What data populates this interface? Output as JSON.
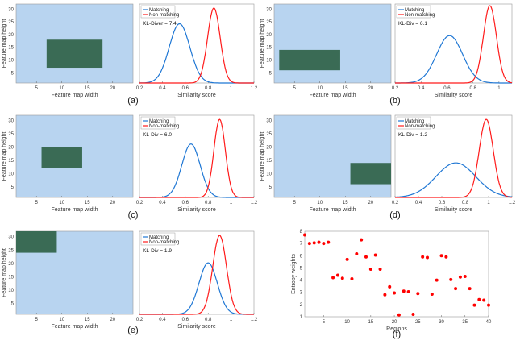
{
  "chart_data": [
    {
      "panel": "(a)",
      "type": "heatmap",
      "xlabel": "Feature map width",
      "ylabel": "Feature map height",
      "xlim": [
        1,
        24
      ],
      "ylim": [
        1,
        32
      ],
      "xticks": [
        5,
        10,
        15,
        20
      ],
      "yticks": [
        5,
        10,
        15,
        20,
        25,
        30
      ],
      "region": {
        "x": [
          7,
          18
        ],
        "y": [
          7,
          18
        ]
      },
      "background": "#b8d4f0",
      "region_color": "#3a6b55"
    },
    {
      "panel": "(a)",
      "type": "line",
      "xlabel": "Similarity score",
      "xlim": [
        0.2,
        1.2
      ],
      "xticks": [
        "0.2",
        "0.4",
        "0.6",
        "0.8",
        "1",
        "1.2"
      ],
      "legend": [
        "Matching",
        "Non-matching"
      ],
      "legend_position": "top-left",
      "annotation": "KL-Diver = 7.4",
      "series": [
        {
          "name": "Matching",
          "color": "#1f77d4",
          "mean": 0.55,
          "sd": 0.09,
          "peak": 0.75
        },
        {
          "name": "Non-matching",
          "color": "#ff1a1a",
          "mean": 0.85,
          "sd": 0.055,
          "peak": 0.95
        }
      ]
    },
    {
      "panel": "(b)",
      "type": "heatmap",
      "xlabel": "Feature map width",
      "ylabel": "Feature map height",
      "xlim": [
        1,
        24
      ],
      "ylim": [
        1,
        32
      ],
      "xticks": [
        5,
        10,
        15,
        20
      ],
      "yticks": [
        5,
        10,
        15,
        20,
        25,
        30
      ],
      "region": {
        "x": [
          2,
          14
        ],
        "y": [
          6,
          14
        ]
      },
      "background": "#b8d4f0",
      "region_color": "#3a6b55"
    },
    {
      "panel": "(b)",
      "type": "line",
      "xlabel": "Similarity score",
      "xlim": [
        0.2,
        1.1
      ],
      "xticks": [
        "0.2",
        "0.4",
        "0.6",
        "0.8",
        "1"
      ],
      "legend": [
        "Matching",
        "Non-matching"
      ],
      "legend_position": "top-left",
      "annotation": "KL-Div = 6.1",
      "series": [
        {
          "name": "Matching",
          "color": "#1f77d4",
          "mean": 0.62,
          "sd": 0.1,
          "peak": 0.6
        },
        {
          "name": "Non-matching",
          "color": "#ff1a1a",
          "mean": 0.93,
          "sd": 0.05,
          "peak": 0.98
        }
      ]
    },
    {
      "panel": "(c)",
      "type": "heatmap",
      "xlabel": "Feature map width",
      "ylabel": "Feature map height",
      "xlim": [
        1,
        24
      ],
      "ylim": [
        1,
        32
      ],
      "xticks": [
        5,
        10,
        15,
        20
      ],
      "yticks": [
        5,
        10,
        15,
        20,
        25,
        30
      ],
      "region": {
        "x": [
          6,
          14
        ],
        "y": [
          12,
          20
        ]
      },
      "background": "#b8d4f0",
      "region_color": "#3a6b55"
    },
    {
      "panel": "(c)",
      "type": "line",
      "xlabel": "Similarity score",
      "xlim": [
        0.2,
        1.2
      ],
      "xticks": [
        "0.2",
        "0.4",
        "0.6",
        "0.8",
        "1",
        "1.2"
      ],
      "legend": [
        "Matching",
        "Non-matching"
      ],
      "legend_position": "top-left",
      "annotation": "KL-Div = 6.0",
      "series": [
        {
          "name": "Matching",
          "color": "#1f77d4",
          "mean": 0.65,
          "sd": 0.08,
          "peak": 0.65
        },
        {
          "name": "Non-matching",
          "color": "#ff1a1a",
          "mean": 0.9,
          "sd": 0.05,
          "peak": 0.95
        }
      ]
    },
    {
      "panel": "(d)",
      "type": "heatmap",
      "xlabel": "Feature map width",
      "ylabel": "Feature map height",
      "xlim": [
        1,
        24
      ],
      "ylim": [
        1,
        32
      ],
      "xticks": [
        5,
        10,
        15,
        20
      ],
      "yticks": [
        5,
        10,
        15,
        20,
        25,
        30
      ],
      "region": {
        "x": [
          16,
          24
        ],
        "y": [
          6,
          14
        ]
      },
      "background": "#b8d4f0",
      "region_color": "#3a6b55"
    },
    {
      "panel": "(d)",
      "type": "line",
      "xlabel": "Similarity score",
      "xlim": [
        0.2,
        1.2
      ],
      "xticks": [
        "0.2",
        "0.4",
        "0.6",
        "0.8",
        "1",
        "1.2"
      ],
      "legend": [
        "Matching",
        "Non-matching"
      ],
      "legend_position": "top-left",
      "annotation": "KL-Div = 1.2",
      "series": [
        {
          "name": "Matching",
          "color": "#1f77d4",
          "mean": 0.72,
          "sd": 0.17,
          "peak": 0.42
        },
        {
          "name": "Non-matching",
          "color": "#ff1a1a",
          "mean": 0.98,
          "sd": 0.06,
          "peak": 0.95
        }
      ]
    },
    {
      "panel": "(e)",
      "type": "heatmap",
      "xlabel": "Feature map width",
      "ylabel": "Feature map height",
      "xlim": [
        1,
        24
      ],
      "ylim": [
        1,
        32
      ],
      "xticks": [
        5,
        10,
        15,
        20
      ],
      "yticks": [
        5,
        10,
        15,
        20,
        25,
        30
      ],
      "region": {
        "x": [
          1,
          9
        ],
        "y": [
          24,
          32
        ]
      },
      "background": "#b8d4f0",
      "region_color": "#3a6b55"
    },
    {
      "panel": "(e)",
      "type": "line",
      "xlabel": "Similarity score",
      "xlim": [
        0.2,
        1.2
      ],
      "xticks": [
        "0.2",
        "0.4",
        "0.6",
        "0.8",
        "1",
        "1.2"
      ],
      "legend": [
        "Matching",
        "Non-matching"
      ],
      "legend_position": "top-left",
      "annotation": "KL-Div = 1.9",
      "series": [
        {
          "name": "Matching",
          "color": "#1f77d4",
          "mean": 0.8,
          "sd": 0.08,
          "peak": 0.62
        },
        {
          "name": "Non-matching",
          "color": "#ff1a1a",
          "mean": 0.9,
          "sd": 0.06,
          "peak": 0.95
        }
      ]
    },
    {
      "panel": "(f)",
      "type": "scatter",
      "xlabel": "Regions",
      "ylabel": "Entropy weights",
      "xlim": [
        1,
        40
      ],
      "ylim": [
        1,
        8
      ],
      "xticks": [
        5,
        10,
        15,
        20,
        25,
        30,
        35,
        40
      ],
      "yticks": [
        1,
        2,
        3,
        4,
        5,
        6,
        7,
        8
      ],
      "color": "#ff0000",
      "x": [
        1,
        2,
        3,
        4,
        5,
        6,
        7,
        8,
        9,
        10,
        11,
        12,
        13,
        14,
        15,
        16,
        17,
        18,
        19,
        20,
        21,
        22,
        23,
        24,
        25,
        26,
        27,
        28,
        29,
        30,
        31,
        32,
        33,
        34,
        35,
        36,
        37,
        38,
        39,
        40
      ],
      "y": [
        7.7,
        7.0,
        7.05,
        7.1,
        7.0,
        7.1,
        4.2,
        4.4,
        4.15,
        5.7,
        4.1,
        6.15,
        7.3,
        5.9,
        4.9,
        6.05,
        4.9,
        2.8,
        3.45,
        2.95,
        1.15,
        3.1,
        3.05,
        1.2,
        2.9,
        5.9,
        5.85,
        2.85,
        4.0,
        6.0,
        5.9,
        4.05,
        3.3,
        4.25,
        4.3,
        3.3,
        1.95,
        2.4,
        2.35,
        1.95
      ]
    }
  ]
}
